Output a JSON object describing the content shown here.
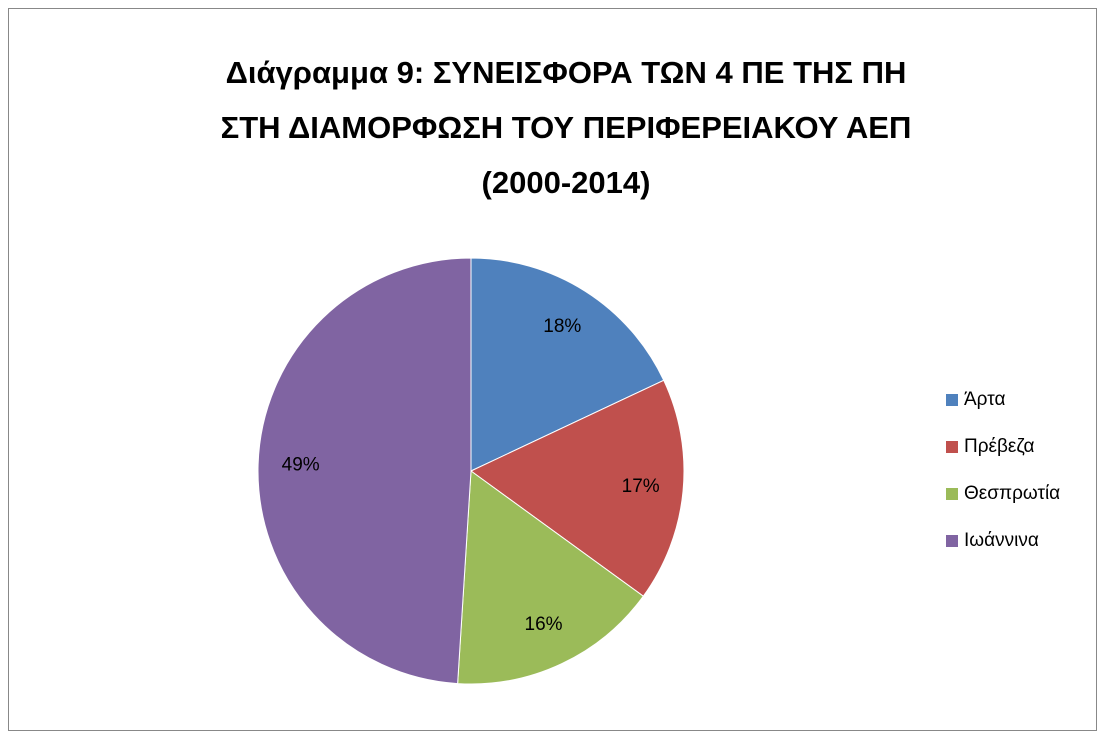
{
  "chart_data": {
    "type": "pie",
    "title": [
      "Διάγραμμα 9: ΣΥΝΕΙΣΦΟΡΑ ΤΩΝ 4 ΠΕ ΤΗΣ ΠΗ",
      "ΣΤΗ ΔΙΑΜΟΡΦΩΣΗ ΤΟΥ ΠΕΡΙΦΕΡΕΙΑΚΟΥ ΑΕΠ",
      "(2000-2014)"
    ],
    "categories": [
      "Άρτα",
      "Πρέβεζα",
      "Θεσπρωτία",
      "Ιωάννινα"
    ],
    "values": [
      18,
      17,
      16,
      49
    ],
    "value_labels": [
      "18%",
      "17%",
      "16%",
      "49%"
    ],
    "colors": [
      "#4f81bd",
      "#c0504d",
      "#9bbb59",
      "#8064a2"
    ],
    "legend": "right"
  }
}
